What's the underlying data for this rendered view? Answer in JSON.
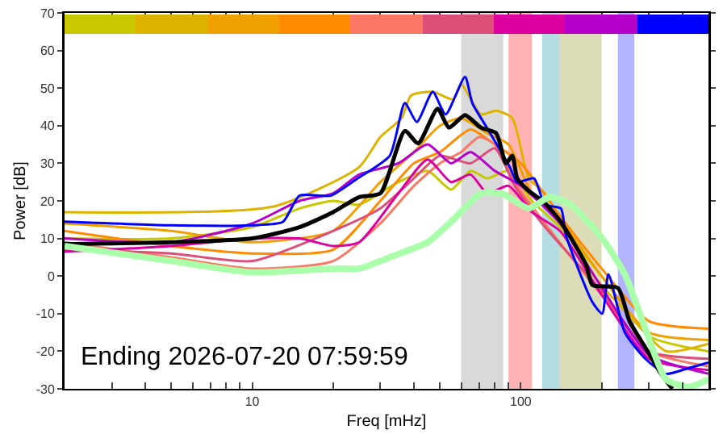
{
  "chart_data": {
    "type": "line",
    "xlabel": "Freq [mHz]",
    "ylabel": "Power [dB]",
    "log": "x",
    "xlim": [
      2,
      500
    ],
    "xticks": [
      {
        "value": 2,
        "label": null
      },
      {
        "value": 3,
        "label": null
      },
      {
        "value": 4,
        "label": null
      },
      {
        "value": 5,
        "label": null
      },
      {
        "value": 6,
        "label": null
      },
      {
        "value": 7,
        "label": null
      },
      {
        "value": 8,
        "label": null
      },
      {
        "value": 9,
        "label": null
      },
      10,
      {
        "value": 20,
        "label": null
      },
      {
        "value": 30,
        "label": null
      },
      {
        "value": 40,
        "label": null
      },
      {
        "value": 50,
        "label": null
      },
      {
        "value": 60,
        "label": null
      },
      {
        "value": 70,
        "label": null
      },
      {
        "value": 80,
        "label": null
      },
      {
        "value": 90,
        "label": null
      },
      100,
      {
        "value": 200,
        "label": null
      },
      {
        "value": 300,
        "label": null
      },
      {
        "value": 400,
        "label": null
      }
    ],
    "ylim": [
      -30,
      70
    ],
    "yticks": [
      -30,
      -20,
      -10,
      0,
      10,
      20,
      30,
      40,
      50,
      60,
      70
    ],
    "grid": false,
    "marker": "none",
    "line_style": "solid",
    "annotations": [
      "Ending 2026-07-20 07:59:59"
    ],
    "bands": [
      {
        "axis": "x",
        "from": 60,
        "to": 86,
        "color": "#d9d9d9"
      },
      {
        "axis": "x",
        "from": 90,
        "to": 110,
        "color": "#ffb3b3"
      },
      {
        "axis": "x",
        "from": 120,
        "to": 140,
        "color": "#b3dde0"
      },
      {
        "axis": "x",
        "from": 140,
        "to": 200,
        "color": "#dcdcb8"
      },
      {
        "axis": "x",
        "from": 230,
        "to": 265,
        "color": "#b3b3ff"
      }
    ],
    "series": [
      {
        "color": "#c8c800",
        "x": [
          2,
          5,
          10,
          15,
          20,
          25,
          35,
          45,
          55,
          65,
          75,
          90,
          110,
          140,
          200,
          300,
          500
        ],
        "values": [
          10,
          10,
          13,
          18,
          20,
          19,
          25,
          28,
          23,
          28,
          26,
          28,
          20,
          13,
          0,
          -16,
          -20
        ]
      },
      {
        "color": "#dcb400",
        "x": [
          2,
          12,
          25,
          30,
          36,
          39,
          47,
          56,
          60,
          71,
          81,
          93,
          107,
          123,
          185,
          265,
          348,
          500
        ],
        "values": [
          17,
          18.5,
          29,
          37,
          42,
          48,
          49,
          47,
          51,
          43,
          44,
          42,
          26,
          22,
          0.5,
          -12,
          -20,
          -18
        ]
      },
      {
        "color": "#f0a000",
        "x": [
          2,
          5,
          10,
          20,
          30,
          40,
          50,
          60,
          75,
          90,
          110,
          140,
          200,
          300,
          500
        ],
        "values": [
          14,
          12,
          9,
          12,
          25,
          33,
          40,
          42,
          38,
          35,
          22,
          15,
          0,
          -15,
          -17
        ]
      },
      {
        "color": "#ff8c00",
        "x": [
          2,
          5,
          10,
          20,
          30,
          40,
          50,
          65,
          80,
          100,
          140,
          200,
          300,
          500
        ],
        "values": [
          12,
          8,
          6,
          7,
          20,
          30,
          33,
          39,
          35,
          30,
          16,
          2,
          -12,
          -14
        ]
      },
      {
        "color": "#fa7864",
        "x": [
          2,
          5,
          10,
          20,
          30,
          40,
          50,
          60,
          70,
          80,
          95,
          120,
          200,
          300,
          500
        ],
        "values": [
          9,
          5,
          2,
          4,
          14,
          24,
          30,
          33,
          37,
          35,
          25,
          15,
          -5,
          -20,
          -24
        ]
      },
      {
        "color": "#dc5078",
        "x": [
          2,
          5,
          10,
          20,
          30,
          40,
          50,
          65,
          80,
          95,
          120,
          200,
          300,
          500
        ],
        "values": [
          7,
          6,
          4,
          12,
          18,
          26,
          32,
          30,
          34,
          24,
          14,
          -4,
          -20,
          -22
        ]
      },
      {
        "color": "#dc00a0",
        "x": [
          2,
          5,
          10,
          15,
          20,
          25,
          35,
          45,
          55,
          65,
          75,
          90,
          110,
          140,
          200,
          300,
          500
        ],
        "values": [
          6.5,
          8,
          10,
          10,
          8,
          9,
          22,
          31,
          25,
          27,
          22,
          24,
          17,
          12,
          -5,
          -22,
          -25
        ]
      },
      {
        "color": "#b400c8",
        "x": [
          2,
          5,
          10,
          15,
          20,
          25,
          35,
          45,
          55,
          65,
          80,
          100,
          140,
          200,
          300,
          500
        ],
        "values": [
          10,
          9,
          14,
          20,
          22,
          27,
          30,
          35,
          30,
          33,
          28,
          24,
          14,
          -3,
          -21,
          -26
        ]
      },
      {
        "color": "#0000ff",
        "x": [
          2,
          5,
          10,
          13,
          15,
          19.6,
          24.7,
          32.5,
          37,
          41,
          47,
          52.5,
          62,
          66,
          74,
          83,
          91,
          97,
          112,
          123,
          141,
          147,
          185,
          201,
          212,
          244,
          291,
          348,
          421,
          500
        ],
        "values": [
          14.5,
          13.5,
          13.5,
          14.4,
          21.4,
          21.4,
          26,
          32,
          46,
          41,
          49,
          43,
          53,
          46,
          40,
          34,
          29,
          25,
          26,
          19,
          18,
          11,
          -7,
          -10,
          0.5,
          -15,
          -22,
          -26,
          -24.5,
          -23
        ]
      },
      {
        "color": "#000000",
        "x": [
          2,
          5,
          10,
          15,
          20,
          25,
          30,
          37,
          41.5,
          49,
          54,
          62,
          71,
          81,
          88,
          93,
          97,
          107,
          123,
          141,
          175,
          185,
          230,
          254,
          291,
          333,
          367
        ],
        "values": [
          8.5,
          9,
          10,
          13,
          17,
          21,
          22,
          38.6,
          35.3,
          44.5,
          39.5,
          42.8,
          39.5,
          38,
          30,
          32,
          26,
          22.7,
          19.4,
          14.4,
          3,
          -2.4,
          -3.2,
          -12,
          -19,
          -26,
          -30
        ]
      },
      {
        "color": "#aaffaa",
        "x": [
          2,
          5,
          10,
          20,
          25,
          32.5,
          45,
          56,
          71,
          85,
          107,
          128,
          153,
          201,
          244,
          291,
          348,
          421,
          500
        ],
        "values": [
          8,
          4,
          1,
          2,
          2,
          5,
          9,
          15,
          22,
          22,
          18,
          21,
          19,
          10,
          0.5,
          -14,
          -27.5,
          -29.5,
          -27.5
        ]
      }
    ]
  }
}
